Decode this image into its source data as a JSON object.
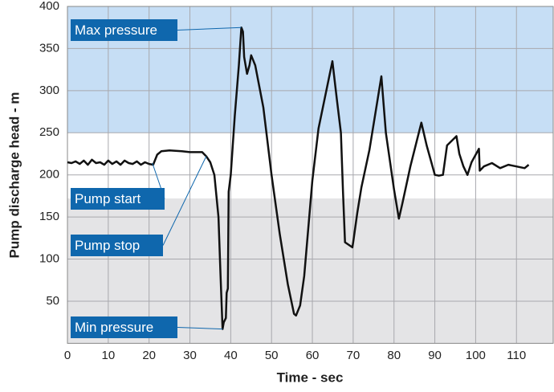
{
  "chart_data": {
    "type": "line",
    "x_label": "Time - sec",
    "y_label": "Pump discharge head - m",
    "xlim": [
      0,
      119
    ],
    "ylim": [
      0,
      400
    ],
    "xticks": [
      0,
      10,
      20,
      30,
      40,
      50,
      60,
      70,
      80,
      90,
      100,
      110
    ],
    "yticks": [
      50,
      100,
      150,
      200,
      250,
      300,
      350,
      400
    ],
    "grid": true,
    "bands": [
      {
        "from": 250,
        "to": 400,
        "color": "#c6def5"
      },
      {
        "from": 0,
        "to": 172,
        "color": "#e4e4e6"
      }
    ],
    "x": [
      0,
      1,
      2,
      3,
      4,
      5,
      6,
      7,
      8,
      9,
      10,
      11,
      12,
      13,
      14,
      15,
      16,
      17,
      18,
      19,
      20,
      21,
      22,
      23,
      25,
      28,
      30,
      33,
      34,
      35,
      36,
      37,
      37.5,
      38,
      38.3,
      38.8,
      39,
      39.3,
      39.5,
      40,
      41,
      42,
      42.6,
      43,
      43.3,
      44,
      44.6,
      45,
      46,
      48,
      50,
      52,
      54,
      55.5,
      56,
      57,
      58,
      60,
      61.5,
      64.9,
      66,
      67,
      67.5,
      68,
      69.8,
      70,
      71,
      72,
      74,
      76.9,
      78,
      80,
      81.2,
      82,
      84,
      86.7,
      88,
      90,
      91,
      92,
      93,
      95.3,
      96,
      97,
      98,
      99,
      100.8,
      101,
      102,
      104,
      106,
      108,
      110,
      112,
      113
    ],
    "series": [
      {
        "color": "#111111",
        "values": [
          215,
          214,
          216,
          213,
          217,
          212,
          218,
          214,
          215,
          212,
          217,
          213,
          216,
          212,
          217,
          214,
          213,
          216,
          212,
          215,
          213,
          212,
          224,
          228,
          229,
          228,
          227,
          227,
          222,
          215,
          200,
          150,
          80,
          17,
          25,
          30,
          60,
          65,
          180,
          200,
          270,
          330,
          375,
          370,
          340,
          320,
          330,
          342,
          330,
          280,
          200,
          130,
          70,
          35,
          33,
          45,
          80,
          193,
          255,
          335,
          290,
          250,
          180,
          120,
          114,
          120,
          155,
          185,
          230,
          317,
          250,
          183,
          148,
          165,
          210,
          262,
          235,
          200,
          199,
          200,
          235,
          246,
          225,
          210,
          200,
          215,
          231,
          205,
          210,
          214,
          208,
          212,
          210,
          208,
          212
        ]
      }
    ],
    "annotation_color": "#0f67ad",
    "annotations": [
      {
        "text": "Max pressure",
        "x": 42.6,
        "y": 375
      },
      {
        "text": "Pump start",
        "x": 20.8,
        "y": 214
      },
      {
        "text": "Pump stop",
        "x": 34,
        "y": 222
      },
      {
        "text": "Min pressure",
        "x": 38,
        "y": 17
      }
    ]
  }
}
